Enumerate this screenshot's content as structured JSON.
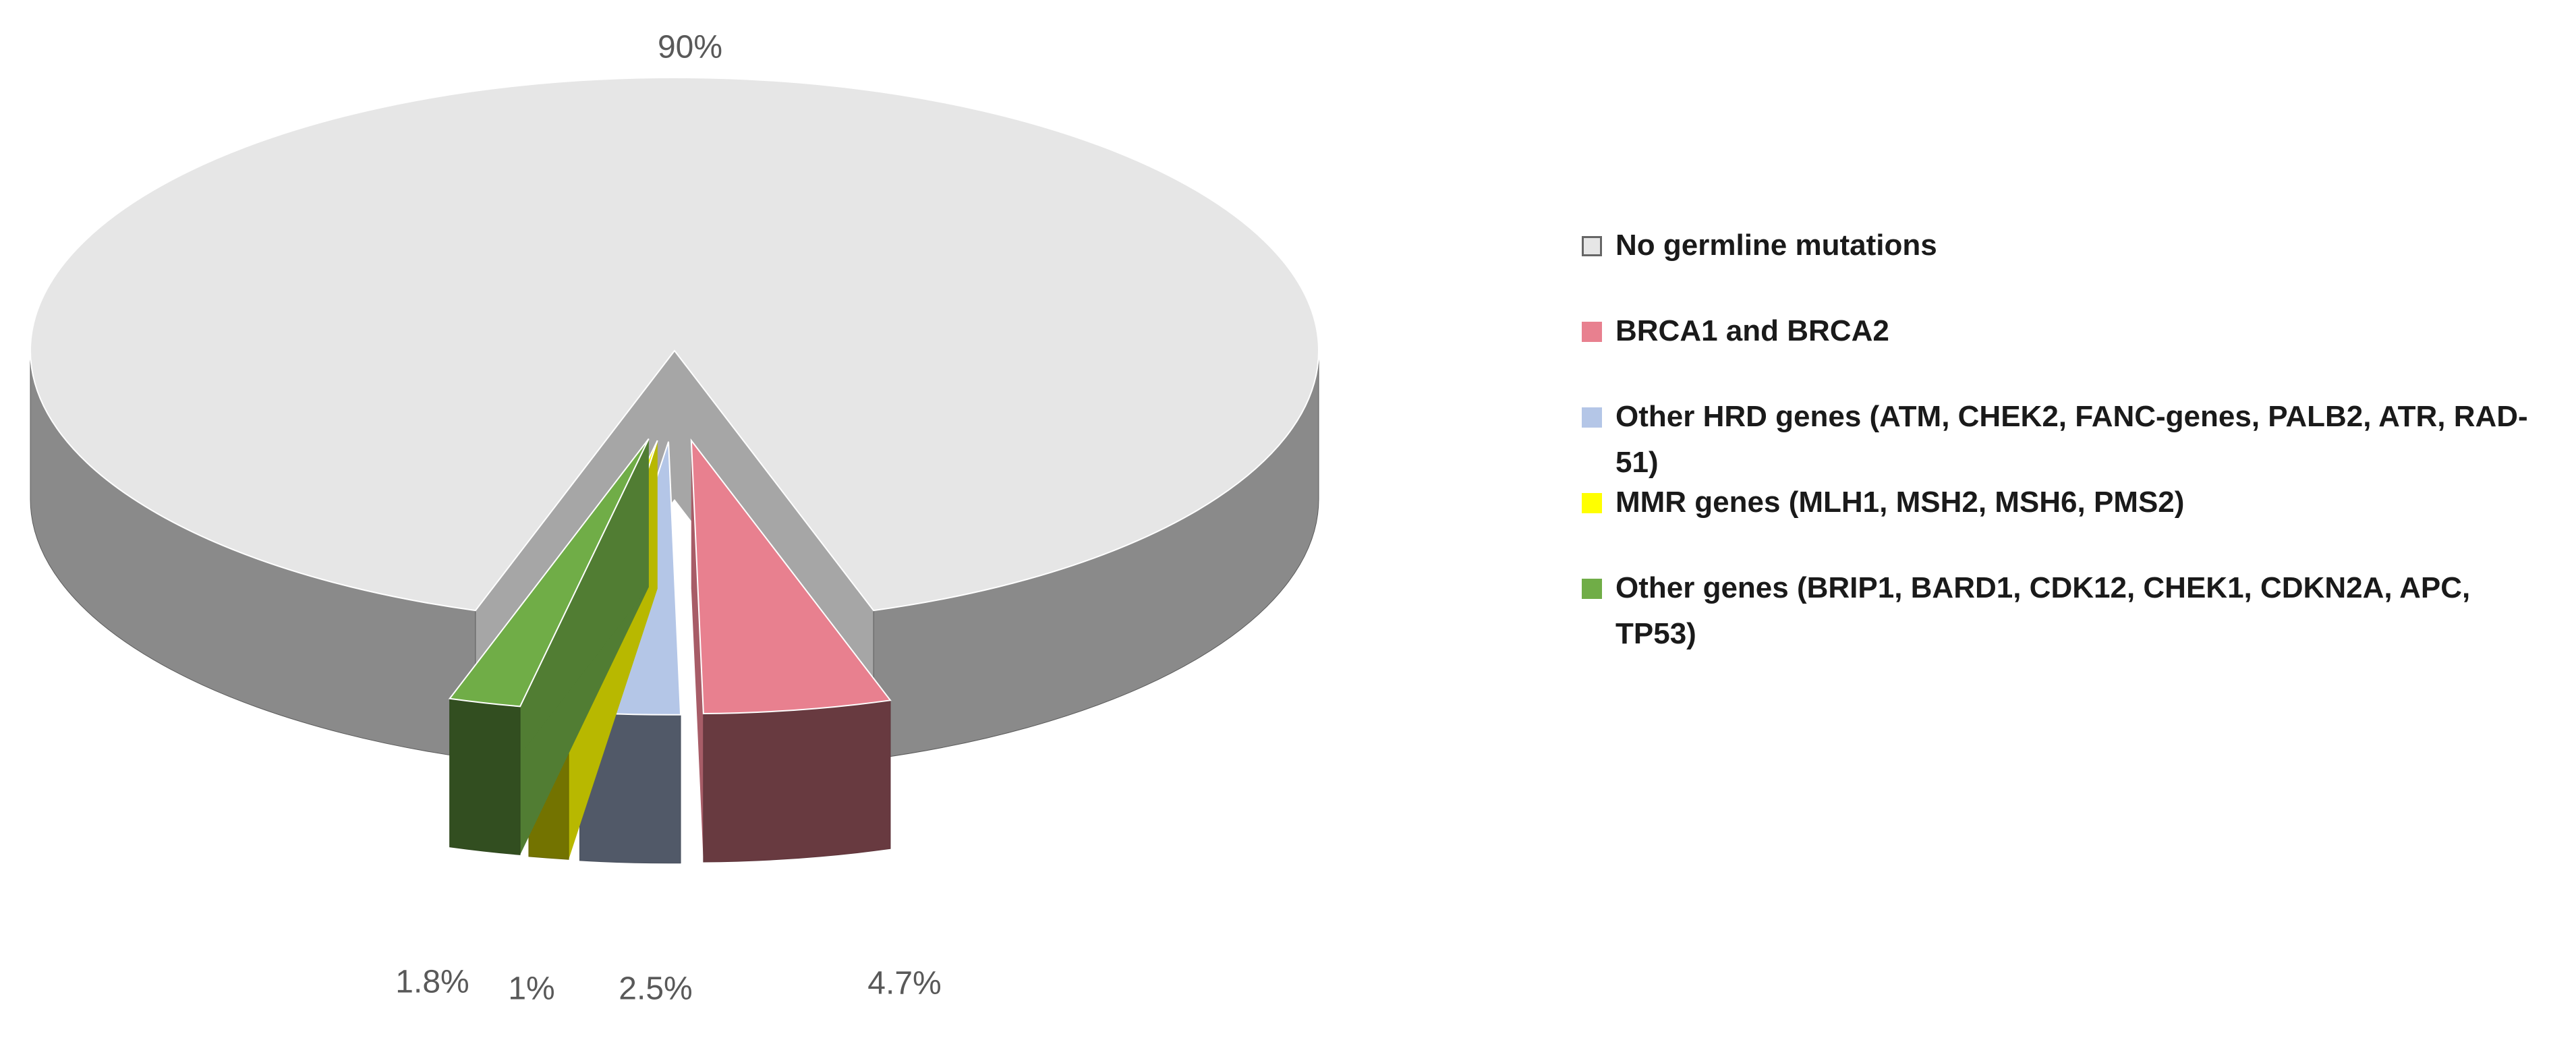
{
  "chart_data": {
    "type": "pie",
    "categories": [
      "No germline mutations",
      "BRCA1 and BRCA2",
      "Other HRD genes (ATM, CHEK2, FANC-genes, PALB2, ATR, RAD-51)",
      "MMR genes (MLH1, MSH2, MSH6, PMS2)",
      "Other genes (BRIP1, BARD1, CDK12, CHEK1, CDKN2A, APC, TP53)"
    ],
    "values": [
      90,
      4.7,
      2.5,
      1,
      1.8
    ],
    "value_labels": [
      "90%",
      "4.7%",
      "2.5%",
      "1%",
      "1.8%"
    ],
    "colors": [
      "#e6e6e6",
      "#e8808f",
      "#b4c6e7",
      "#ffff00",
      "#70ad47"
    ],
    "legend": "right"
  }
}
